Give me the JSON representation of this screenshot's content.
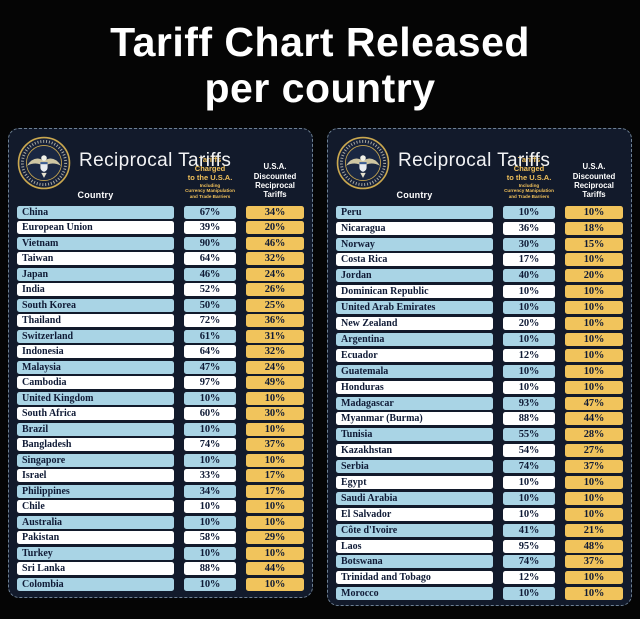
{
  "title": {
    "line1": "Tariff Chart Released",
    "line2": "per country"
  },
  "colors": {
    "background": "#050505",
    "panel_bg": "#121a2b",
    "row_blue": "#a9d4e5",
    "row_white": "#ffffff",
    "gold_cell": "#f1c45c",
    "gold_header_text": "#f0c05a",
    "text_navy": "#101b36"
  },
  "panel_header": {
    "seal_icon": "presidential-seal-icon",
    "title": "Reciprocal Tariffs",
    "country_label": "Country",
    "charged_line1": "Tariffs Charged",
    "charged_line2": "to the U.S.A.",
    "charged_sub1": "Including",
    "charged_sub2": "Currency Manipulation",
    "charged_sub3": "and Trade Barriers",
    "discounted_line1": "U.S.A. Discounted",
    "discounted_line2": "Reciprocal Tariffs"
  },
  "chart_data": {
    "type": "table",
    "title": "Tariff Chart Released per country",
    "columns": [
      "Country",
      "Tariffs Charged to the U.S.A. Including Currency Manipulation and Trade Barriers",
      "U.S.A. Discounted Reciprocal Tariffs"
    ],
    "tables": [
      {
        "rows": [
          [
            "China",
            "67%",
            "34%"
          ],
          [
            "European Union",
            "39%",
            "20%"
          ],
          [
            "Vietnam",
            "90%",
            "46%"
          ],
          [
            "Taiwan",
            "64%",
            "32%"
          ],
          [
            "Japan",
            "46%",
            "24%"
          ],
          [
            "India",
            "52%",
            "26%"
          ],
          [
            "South Korea",
            "50%",
            "25%"
          ],
          [
            "Thailand",
            "72%",
            "36%"
          ],
          [
            "Switzerland",
            "61%",
            "31%"
          ],
          [
            "Indonesia",
            "64%",
            "32%"
          ],
          [
            "Malaysia",
            "47%",
            "24%"
          ],
          [
            "Cambodia",
            "97%",
            "49%"
          ],
          [
            "United Kingdom",
            "10%",
            "10%"
          ],
          [
            "South Africa",
            "60%",
            "30%"
          ],
          [
            "Brazil",
            "10%",
            "10%"
          ],
          [
            "Bangladesh",
            "74%",
            "37%"
          ],
          [
            "Singapore",
            "10%",
            "10%"
          ],
          [
            "Israel",
            "33%",
            "17%"
          ],
          [
            "Philippines",
            "34%",
            "17%"
          ],
          [
            "Chile",
            "10%",
            "10%"
          ],
          [
            "Australia",
            "10%",
            "10%"
          ],
          [
            "Pakistan",
            "58%",
            "29%"
          ],
          [
            "Turkey",
            "10%",
            "10%"
          ],
          [
            "Sri Lanka",
            "88%",
            "44%"
          ],
          [
            "Colombia",
            "10%",
            "10%"
          ]
        ]
      },
      {
        "rows": [
          [
            "Peru",
            "10%",
            "10%"
          ],
          [
            "Nicaragua",
            "36%",
            "18%"
          ],
          [
            "Norway",
            "30%",
            "15%"
          ],
          [
            "Costa Rica",
            "17%",
            "10%"
          ],
          [
            "Jordan",
            "40%",
            "20%"
          ],
          [
            "Dominican Republic",
            "10%",
            "10%"
          ],
          [
            "United Arab Emirates",
            "10%",
            "10%"
          ],
          [
            "New Zealand",
            "20%",
            "10%"
          ],
          [
            "Argentina",
            "10%",
            "10%"
          ],
          [
            "Ecuador",
            "12%",
            "10%"
          ],
          [
            "Guatemala",
            "10%",
            "10%"
          ],
          [
            "Honduras",
            "10%",
            "10%"
          ],
          [
            "Madagascar",
            "93%",
            "47%"
          ],
          [
            "Myanmar (Burma)",
            "88%",
            "44%"
          ],
          [
            "Tunisia",
            "55%",
            "28%"
          ],
          [
            "Kazakhstan",
            "54%",
            "27%"
          ],
          [
            "Serbia",
            "74%",
            "37%"
          ],
          [
            "Egypt",
            "10%",
            "10%"
          ],
          [
            "Saudi Arabia",
            "10%",
            "10%"
          ],
          [
            "El Salvador",
            "10%",
            "10%"
          ],
          [
            "Côte d'Ivoire",
            "41%",
            "21%"
          ],
          [
            "Laos",
            "95%",
            "48%"
          ],
          [
            "Botswana",
            "74%",
            "37%"
          ],
          [
            "Trinidad and Tobago",
            "12%",
            "10%"
          ],
          [
            "Morocco",
            "10%",
            "10%"
          ]
        ]
      }
    ]
  }
}
